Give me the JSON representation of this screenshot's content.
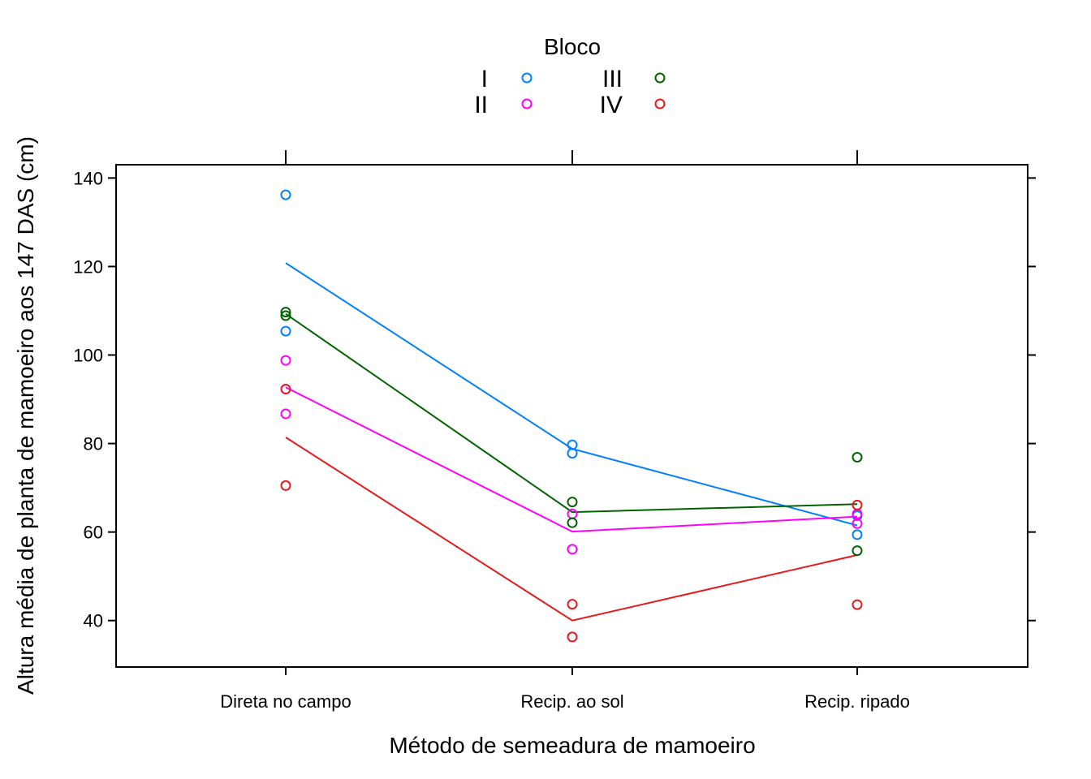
{
  "chart_data": {
    "type": "scatter",
    "xlabel": "Método de semeadura de mamoeiro",
    "ylabel": "Altura média de planta de mamoeiro aos 147 DAS (cm)",
    "categories": [
      "Direta no campo",
      "Recip. ao sol",
      "Recip. ripado"
    ],
    "ylim": [
      29.5,
      143
    ],
    "yticks": [
      40,
      60,
      80,
      100,
      120,
      140
    ],
    "grid": false,
    "legend": {
      "title": "Bloco",
      "placement": "top-center"
    },
    "series": [
      {
        "name": "I",
        "color": "#0080ff",
        "points": [
          [
            136.2,
            105.4
          ],
          [
            79.7,
            77.8
          ],
          [
            63.7,
            59.4
          ]
        ],
        "line": [
          120.8,
          78.8,
          61.5
        ]
      },
      {
        "name": "II",
        "color": "#ff00ff",
        "points": [
          [
            98.8,
            86.7
          ],
          [
            64.1,
            56.1
          ],
          [
            64.1,
            61.9
          ]
        ],
        "line": [
          92.7,
          60.1,
          63.5
        ]
      },
      {
        "name": "III",
        "color": "#006400",
        "points": [
          [
            109.7,
            108.9
          ],
          [
            66.8,
            62.1
          ],
          [
            76.9,
            55.8
          ]
        ],
        "line": [
          109.3,
          64.5,
          66.3
        ]
      },
      {
        "name": "IV",
        "color": "#e41a1c",
        "points": [
          [
            92.3,
            70.5
          ],
          [
            43.7,
            36.3
          ],
          [
            66.1,
            43.6
          ]
        ],
        "line": [
          81.4,
          40.0,
          54.8
        ]
      }
    ]
  }
}
